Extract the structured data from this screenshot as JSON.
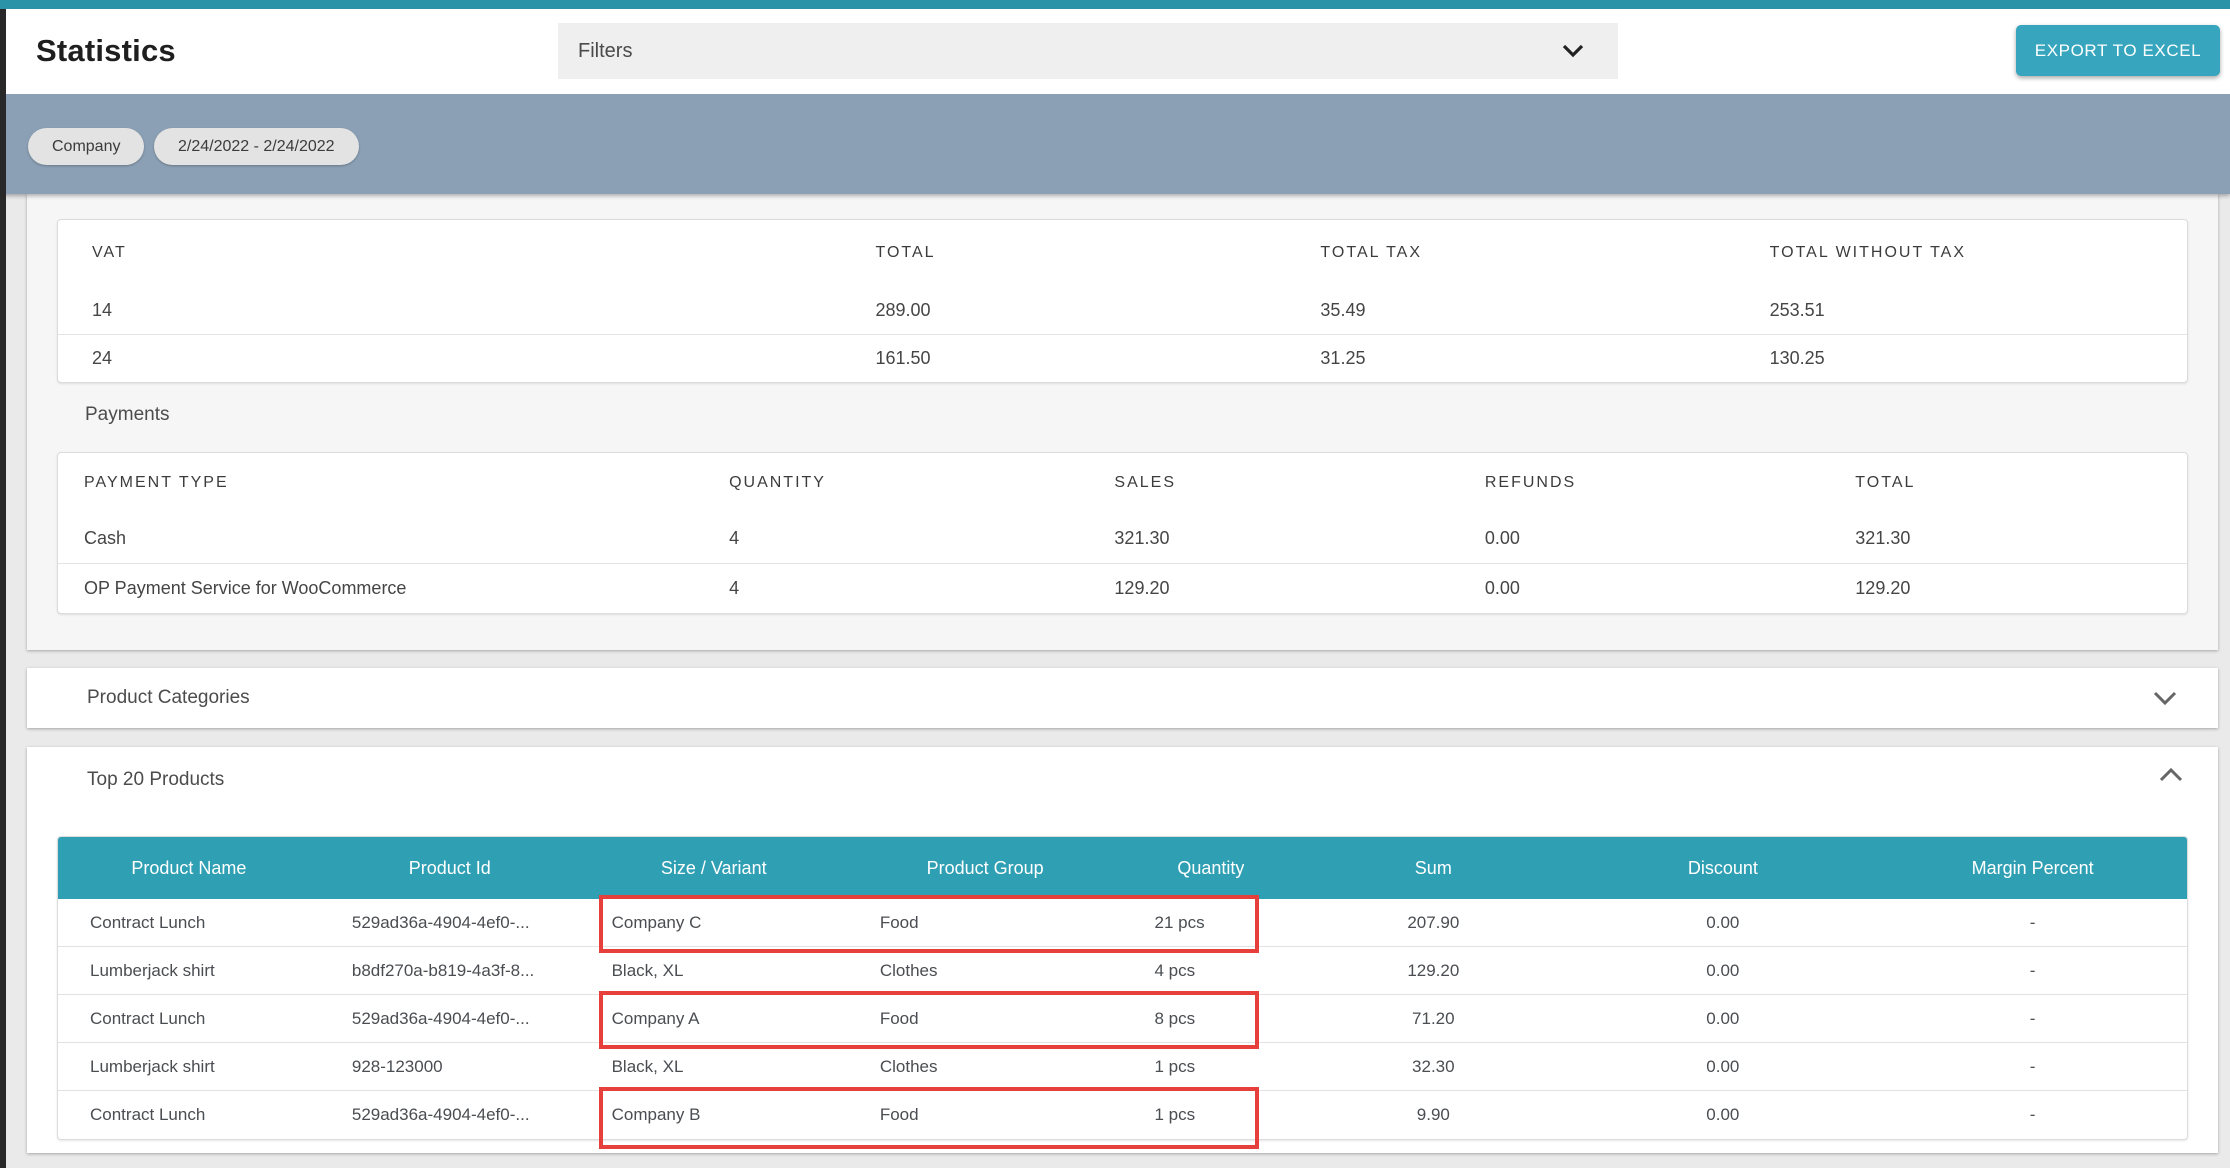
{
  "topbar": {
    "title": "Statistics",
    "filters_label": "Filters",
    "export_label": "EXPORT TO EXCEL"
  },
  "filter_chips": [
    {
      "label": "Company"
    },
    {
      "label": "2/24/2022 - 2/24/2022"
    }
  ],
  "vat_summary": {
    "columns": [
      "VAT",
      "TOTAL",
      "TOTAL TAX",
      "TOTAL WITHOUT TAX"
    ],
    "rows": [
      [
        "14",
        "289.00",
        "35.49",
        "253.51"
      ],
      [
        "24",
        "161.50",
        "31.25",
        "130.25"
      ]
    ]
  },
  "payments": {
    "title": "Payments",
    "columns": [
      "PAYMENT TYPE",
      "QUANTITY",
      "SALES",
      "REFUNDS",
      "TOTAL"
    ],
    "rows": [
      [
        "Cash",
        "4",
        "321.30",
        "0.00",
        "321.30"
      ],
      [
        "OP Payment Service for WooCommerce",
        "4",
        "129.20",
        "0.00",
        "129.20"
      ]
    ]
  },
  "product_categories": {
    "title": "Product Categories"
  },
  "top_products": {
    "title": "Top 20 Products",
    "columns": [
      "Product Name",
      "Product Id",
      "Size / Variant",
      "Product Group",
      "Quantity",
      "Sum",
      "Discount",
      "Margin Percent"
    ],
    "rows": [
      {
        "cells": [
          "Contract Lunch",
          "529ad36a-4904-4ef0-...",
          "Company C",
          "Food",
          "21 pcs",
          "207.90",
          "0.00",
          "-"
        ],
        "highlighted": true
      },
      {
        "cells": [
          "Lumberjack shirt",
          "b8df270a-b819-4a3f-8...",
          "Black, XL",
          "Clothes",
          "4 pcs",
          "129.20",
          "0.00",
          "-"
        ],
        "highlighted": false
      },
      {
        "cells": [
          "Contract Lunch",
          "529ad36a-4904-4ef0-...",
          "Company A",
          "Food",
          "8 pcs",
          "71.20",
          "0.00",
          "-"
        ],
        "highlighted": true
      },
      {
        "cells": [
          "Lumberjack shirt",
          "928-123000",
          "Black, XL",
          "Clothes",
          "1 pcs",
          "32.30",
          "0.00",
          "-"
        ],
        "highlighted": false
      },
      {
        "cells": [
          "Contract Lunch",
          "529ad36a-4904-4ef0-...",
          "Company B",
          "Food",
          "1 pcs",
          "9.90",
          "0.00",
          "-"
        ],
        "highlighted": true
      }
    ]
  },
  "colors": {
    "top_strip_teal": "#2a93a8",
    "table_header_teal": "#2f9fb4",
    "button_teal": "#36a5bd",
    "band_blue_gray": "#8ba0b5",
    "highlight_red": "#e5403c"
  }
}
